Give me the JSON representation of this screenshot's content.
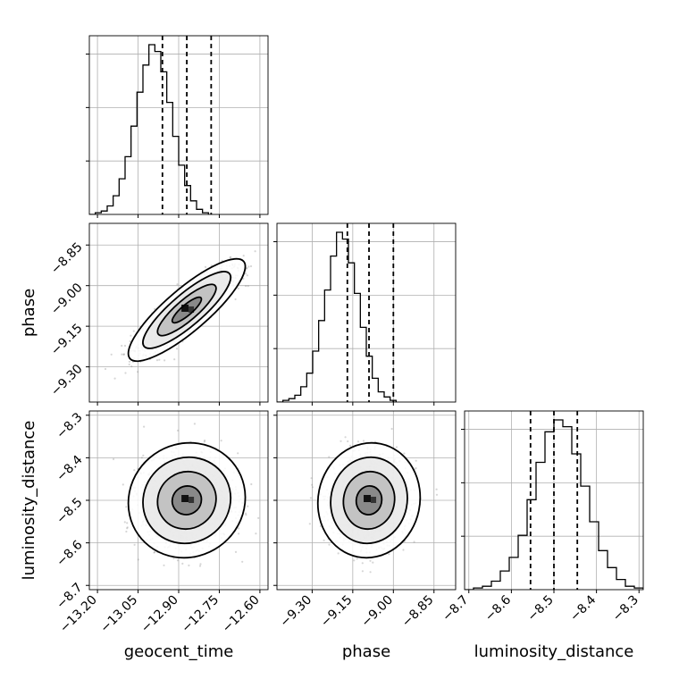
{
  "chart_data": {
    "type": "corner",
    "grid": true,
    "parameters": [
      {
        "name": "geocent_time",
        "label": "geocent_time",
        "range": [
          -13.23,
          -12.57
        ],
        "ticks": [
          -13.2,
          -13.05,
          -12.9,
          -12.75,
          -12.6
        ],
        "tick_labels": [
          "−13.20",
          "−13.05",
          "−12.90",
          "−12.75",
          "−12.60"
        ],
        "quantiles": [
          -12.96,
          -12.87,
          -12.78
        ],
        "mean": -12.87,
        "sd": 0.08
      },
      {
        "name": "phase",
        "label": "phase",
        "range": [
          -9.43,
          -8.77
        ],
        "ticks": [
          -9.3,
          -9.15,
          -9.0,
          -8.85
        ],
        "tick_labels": [
          "−9.30",
          "−9.15",
          "−9.00",
          "−8.85"
        ],
        "quantiles": [
          -9.17,
          -9.09,
          -9.0
        ],
        "mean": -9.09,
        "sd": 0.07
      },
      {
        "name": "luminosity_distance",
        "label": "luminosity_distance",
        "range": [
          -8.71,
          -8.29
        ],
        "ticks": [
          -8.7,
          -8.6,
          -8.5,
          -8.4,
          -8.3
        ],
        "tick_labels": [
          "−8.7",
          "−8.6",
          "−8.5",
          "−8.4",
          "−8.3"
        ],
        "quantiles": [
          -8.555,
          -8.5,
          -8.445
        ],
        "mean": -8.5,
        "sd": 0.05
      }
    ],
    "histograms": [
      {
        "param": "geocent_time",
        "bin_edges_start": -13.23,
        "bin_width": 0.022,
        "counts": [
          0,
          1,
          2,
          5,
          11,
          21,
          34,
          52,
          72,
          88,
          100,
          96,
          84,
          66,
          46,
          29,
          17,
          8,
          3,
          1
        ]
      },
      {
        "param": "phase",
        "bin_edges_start": -9.43,
        "bin_width": 0.022,
        "counts": [
          0,
          1,
          2,
          4,
          9,
          17,
          30,
          48,
          66,
          86,
          100,
          96,
          82,
          64,
          44,
          27,
          14,
          6,
          3,
          1
        ]
      },
      {
        "param": "luminosity_distance",
        "bin_edges_start": -8.71,
        "bin_width": 0.021,
        "counts": [
          0,
          1,
          2,
          5,
          11,
          19,
          32,
          53,
          75,
          93,
          100,
          96,
          80,
          61,
          40,
          23,
          13,
          6,
          2,
          1
        ]
      }
    ],
    "pairs": [
      {
        "x": "geocent_time",
        "y": "phase",
        "correlation": 0.85,
        "points": 1800
      },
      {
        "x": "geocent_time",
        "y": "luminosity_distance",
        "correlation": 0.05,
        "points": 1800
      },
      {
        "x": "phase",
        "y": "luminosity_distance",
        "correlation": 0.05,
        "points": 1800
      }
    ],
    "contour_levels_sigma": [
      0.5,
      1.0,
      1.5,
      2.0
    ]
  }
}
